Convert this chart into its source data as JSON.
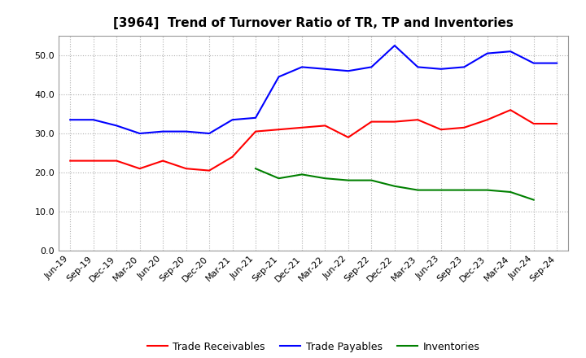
{
  "title": "[3964]  Trend of Turnover Ratio of TR, TP and Inventories",
  "ylim": [
    0,
    55
  ],
  "yticks": [
    0.0,
    10.0,
    20.0,
    30.0,
    40.0,
    50.0
  ],
  "x_labels": [
    "Jun-19",
    "Sep-19",
    "Dec-19",
    "Mar-20",
    "Jun-20",
    "Sep-20",
    "Dec-20",
    "Mar-21",
    "Jun-21",
    "Sep-21",
    "Dec-21",
    "Mar-22",
    "Jun-22",
    "Sep-22",
    "Dec-22",
    "Mar-23",
    "Jun-23",
    "Sep-23",
    "Dec-23",
    "Mar-24",
    "Jun-24",
    "Sep-24"
  ],
  "trade_receivables": [
    23.0,
    23.0,
    23.0,
    21.0,
    23.0,
    21.0,
    20.5,
    24.0,
    30.5,
    31.0,
    31.5,
    32.0,
    29.0,
    33.0,
    33.0,
    33.5,
    31.0,
    31.5,
    33.5,
    36.0,
    32.5,
    32.5
  ],
  "trade_payables": [
    33.5,
    33.5,
    32.0,
    30.0,
    30.5,
    30.5,
    30.0,
    33.5,
    34.0,
    44.5,
    47.0,
    46.5,
    46.0,
    47.0,
    52.5,
    47.0,
    46.5,
    47.0,
    50.5,
    51.0,
    48.0,
    48.0
  ],
  "inventories": [
    null,
    null,
    null,
    null,
    null,
    null,
    null,
    null,
    21.0,
    18.5,
    19.5,
    18.5,
    18.0,
    18.0,
    16.5,
    15.5,
    15.5,
    15.5,
    15.5,
    15.0,
    13.0,
    null
  ],
  "line_color_tr": "#ff0000",
  "line_color_tp": "#0000ff",
  "line_color_inv": "#008000",
  "legend_labels": [
    "Trade Receivables",
    "Trade Payables",
    "Inventories"
  ],
  "background_color": "#ffffff",
  "grid_color": "#b0b0b0",
  "title_fontsize": 11,
  "legend_fontsize": 9,
  "tick_fontsize": 8
}
